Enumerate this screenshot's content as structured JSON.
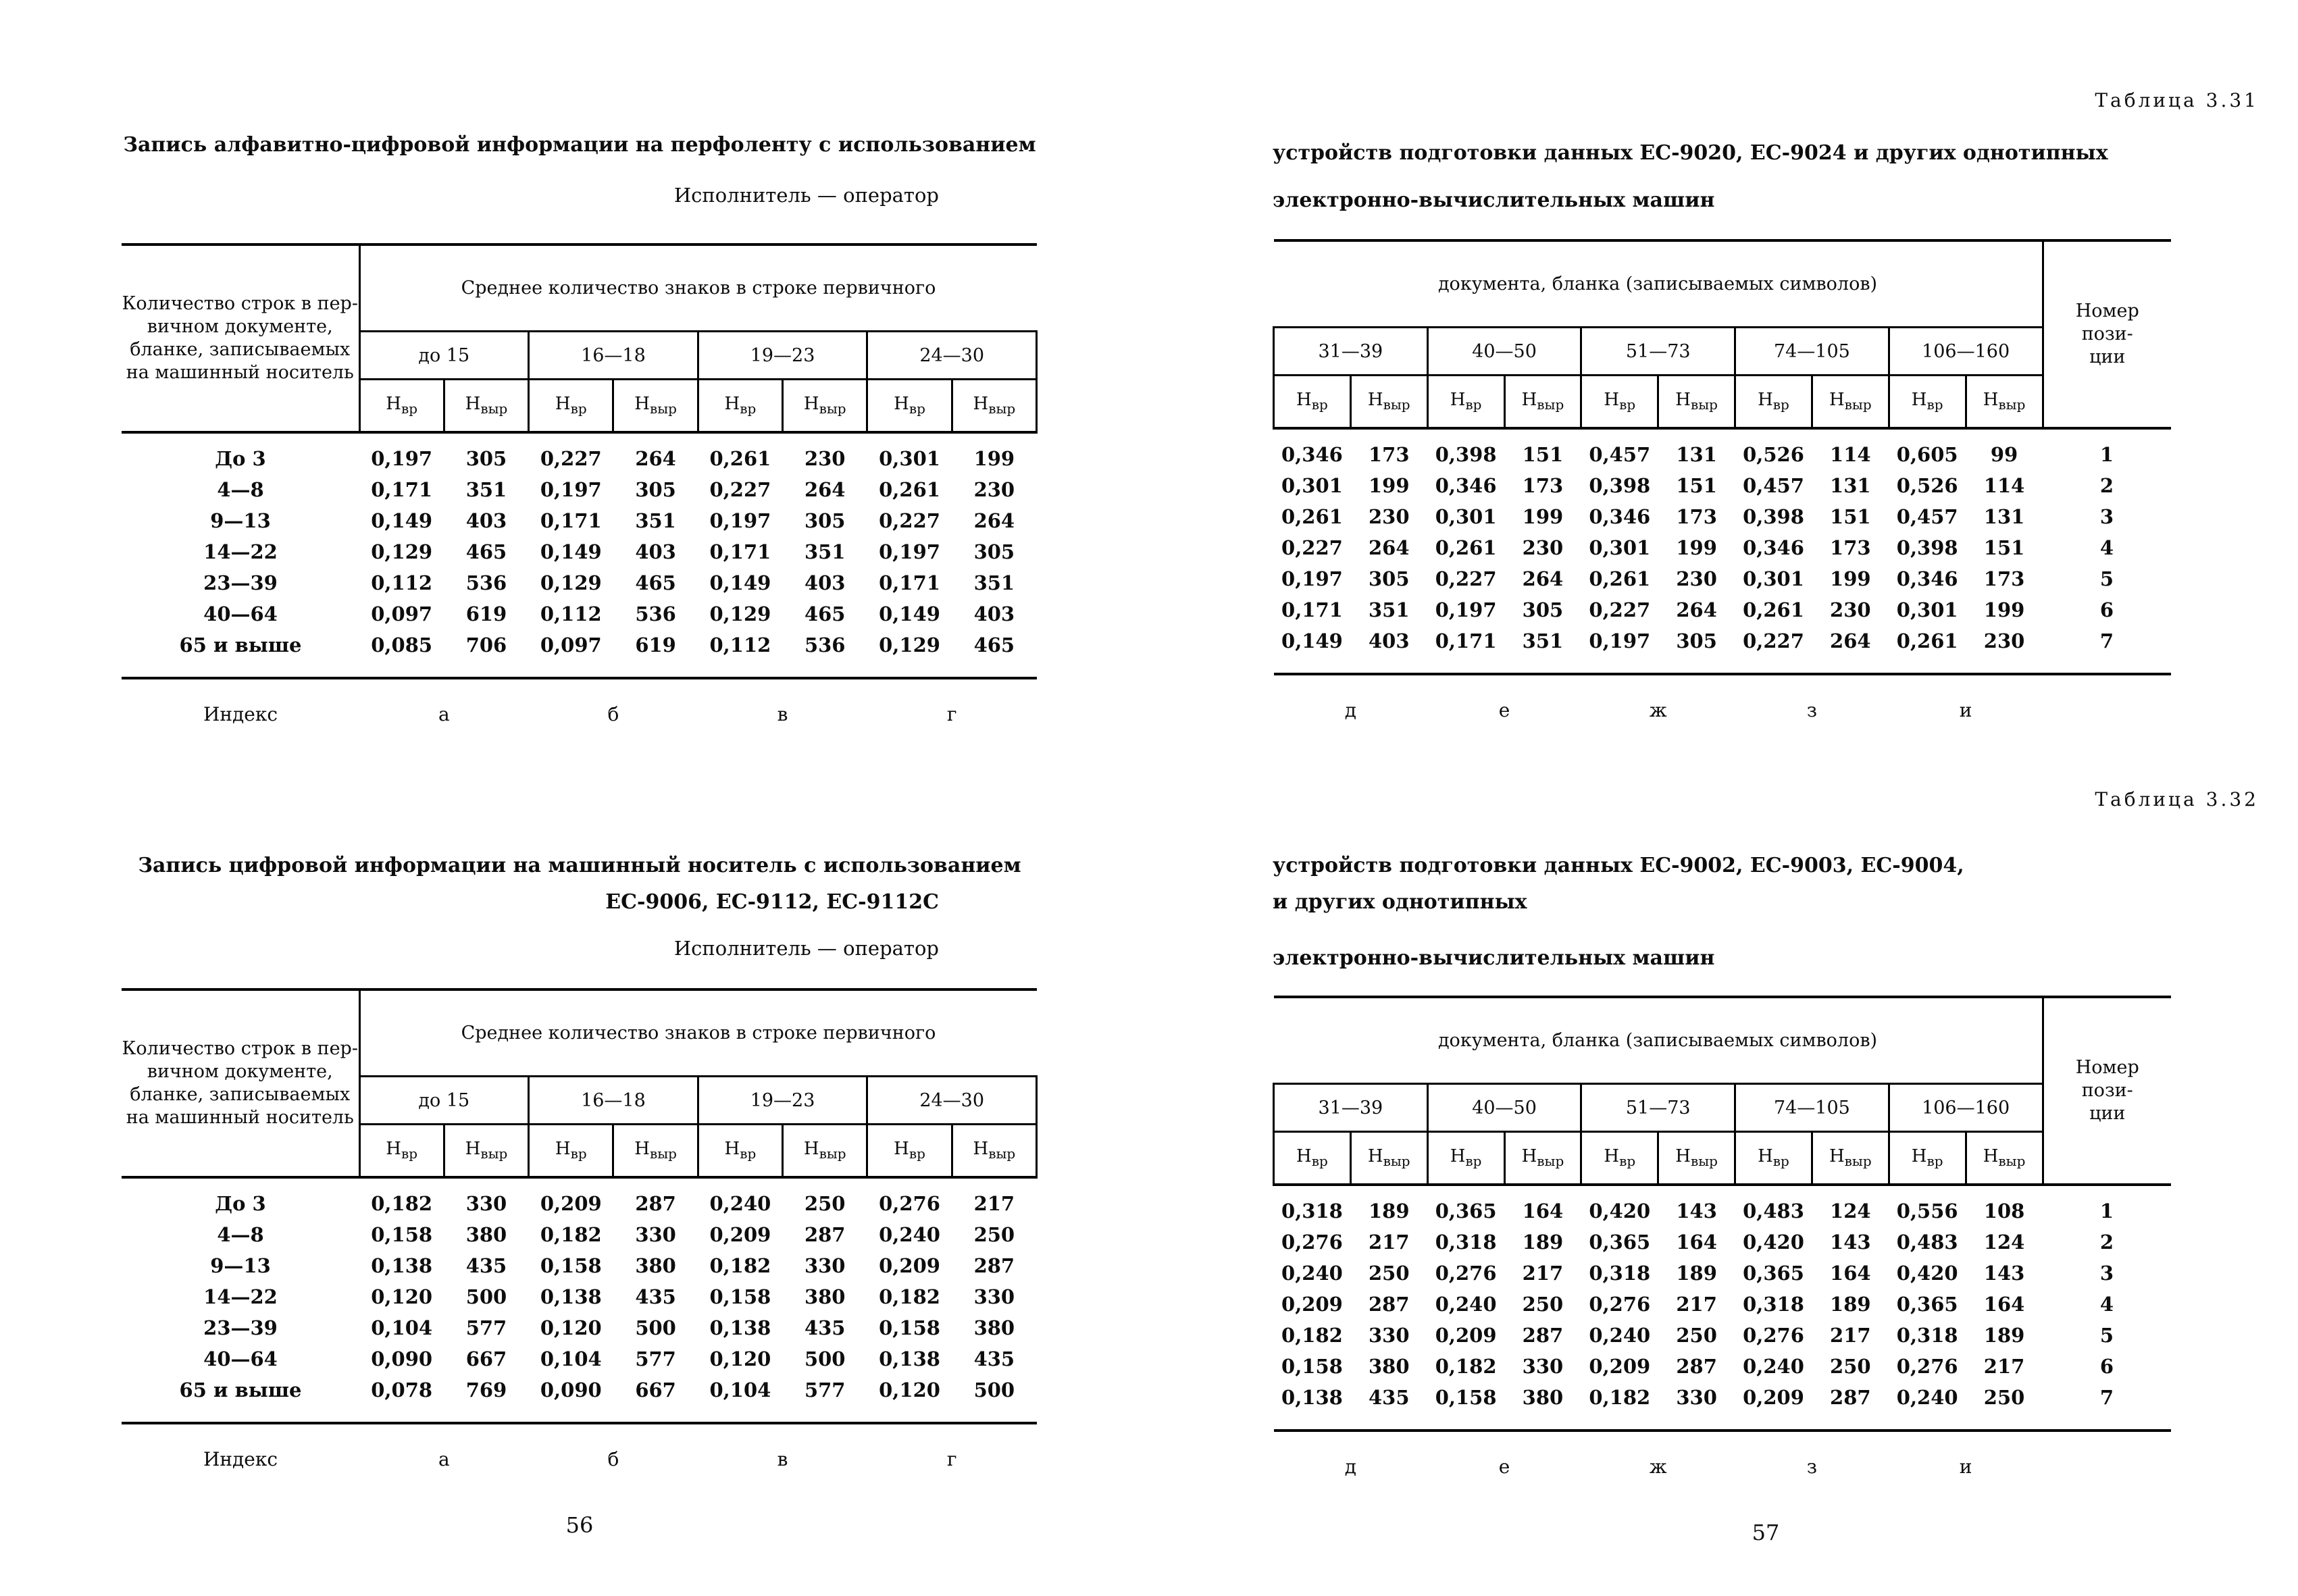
{
  "units": {
    "base": "Н",
    "vr": "вр",
    "vyr": "выр"
  },
  "left_page": {
    "page_number": "56",
    "table_331": {
      "title": "Запись алфавитно-цифровой информации на перфоленту с использованием",
      "performer": "Исполнитель — оператор",
      "col1_header": "Количество строк в пер-\nвичном документе,\nбланке, записываемых\nна машинный носитель",
      "group_header": "Среднее количество знаков в строке первичного",
      "groups": [
        "до 15",
        "16—18",
        "19—23",
        "24—30"
      ],
      "rows": [
        {
          "label": "До 3",
          "values": [
            "0,197",
            "305",
            "0,227",
            "264",
            "0,261",
            "230",
            "0,301",
            "199"
          ]
        },
        {
          "label": "4—8",
          "values": [
            "0,171",
            "351",
            "0,197",
            "305",
            "0,227",
            "264",
            "0,261",
            "230"
          ]
        },
        {
          "label": "9—13",
          "values": [
            "0,149",
            "403",
            "0,171",
            "351",
            "0,197",
            "305",
            "0,227",
            "264"
          ]
        },
        {
          "label": "14—22",
          "values": [
            "0,129",
            "465",
            "0,149",
            "403",
            "0,171",
            "351",
            "0,197",
            "305"
          ]
        },
        {
          "label": "23—39",
          "values": [
            "0,112",
            "536",
            "0,129",
            "465",
            "0,149",
            "403",
            "0,171",
            "351"
          ]
        },
        {
          "label": "40—64",
          "values": [
            "0,097",
            "619",
            "0,112",
            "536",
            "0,129",
            "465",
            "0,149",
            "403"
          ]
        },
        {
          "label": "65 и выше",
          "values": [
            "0,085",
            "706",
            "0,097",
            "619",
            "0,112",
            "536",
            "0,129",
            "465"
          ]
        }
      ],
      "index_label": "Индекс",
      "index_letters": [
        "а",
        "б",
        "в",
        "г"
      ]
    },
    "table_332": {
      "title_line1": "Запись цифровой информации на машинный носитель с использованием",
      "title_line2": "ЕС-9006, ЕС-9112, ЕС-9112С",
      "performer": "Исполнитель — оператор",
      "col1_header": "Количество строк в пер-\nвичном документе,\nбланке, записываемых\nна машинный носитель",
      "group_header": "Среднее количество знаков в строке первичного",
      "groups": [
        "до 15",
        "16—18",
        "19—23",
        "24—30"
      ],
      "rows": [
        {
          "label": "До 3",
          "values": [
            "0,182",
            "330",
            "0,209",
            "287",
            "0,240",
            "250",
            "0,276",
            "217"
          ]
        },
        {
          "label": "4—8",
          "values": [
            "0,158",
            "380",
            "0,182",
            "330",
            "0,209",
            "287",
            "0,240",
            "250"
          ]
        },
        {
          "label": "9—13",
          "values": [
            "0,138",
            "435",
            "0,158",
            "380",
            "0,182",
            "330",
            "0,209",
            "287"
          ]
        },
        {
          "label": "14—22",
          "values": [
            "0,120",
            "500",
            "0,138",
            "435",
            "0,158",
            "380",
            "0,182",
            "330"
          ]
        },
        {
          "label": "23—39",
          "values": [
            "0,104",
            "577",
            "0,120",
            "500",
            "0,138",
            "435",
            "0,158",
            "380"
          ]
        },
        {
          "label": "40—64",
          "values": [
            "0,090",
            "667",
            "0,104",
            "577",
            "0,120",
            "500",
            "0,138",
            "435"
          ]
        },
        {
          "label": "65 и выше",
          "values": [
            "0,078",
            "769",
            "0,090",
            "667",
            "0,104",
            "577",
            "0,120",
            "500"
          ]
        }
      ],
      "index_label": "Индекс",
      "index_letters": [
        "а",
        "б",
        "в",
        "г"
      ]
    }
  },
  "right_page": {
    "page_number": "57",
    "table_331": {
      "label": "Таблица 3.31",
      "title_line1": "устройств подготовки данных ЕС-9020, ЕС-9024 и других однотипных",
      "title_line2": "электронно-вычислительных машин",
      "group_header": "документа, бланка (записываемых символов)",
      "position_header": "Номер\nпози-\nции",
      "groups": [
        "31—39",
        "40—50",
        "51—73",
        "74—105",
        "106—160"
      ],
      "rows": [
        {
          "values": [
            "0,346",
            "173",
            "0,398",
            "151",
            "0,457",
            "131",
            "0,526",
            "114",
            "0,605",
            "99"
          ],
          "position": "1"
        },
        {
          "values": [
            "0,301",
            "199",
            "0,346",
            "173",
            "0,398",
            "151",
            "0,457",
            "131",
            "0,526",
            "114"
          ],
          "position": "2"
        },
        {
          "values": [
            "0,261",
            "230",
            "0,301",
            "199",
            "0,346",
            "173",
            "0,398",
            "151",
            "0,457",
            "131"
          ],
          "position": "3"
        },
        {
          "values": [
            "0,227",
            "264",
            "0,261",
            "230",
            "0,301",
            "199",
            "0,346",
            "173",
            "0,398",
            "151"
          ],
          "position": "4"
        },
        {
          "values": [
            "0,197",
            "305",
            "0,227",
            "264",
            "0,261",
            "230",
            "0,301",
            "199",
            "0,346",
            "173"
          ],
          "position": "5"
        },
        {
          "values": [
            "0,171",
            "351",
            "0,197",
            "305",
            "0,227",
            "264",
            "0,261",
            "230",
            "0,301",
            "199"
          ],
          "position": "6"
        },
        {
          "values": [
            "0,149",
            "403",
            "0,171",
            "351",
            "0,197",
            "305",
            "0,227",
            "264",
            "0,261",
            "230"
          ],
          "position": "7"
        }
      ],
      "index_letters": [
        "д",
        "е",
        "ж",
        "з",
        "и"
      ]
    },
    "table_332": {
      "label": "Таблица 3.32",
      "title_line1": "устройств подготовки данных ЕС-9002, ЕС-9003, ЕС-9004,",
      "title_line2": "и других однотипных",
      "title_line3": "электронно-вычислительных машин",
      "group_header": "документа, бланка (записываемых символов)",
      "position_header": "Номер\nпози-\nции",
      "groups": [
        "31—39",
        "40—50",
        "51—73",
        "74—105",
        "106—160"
      ],
      "rows": [
        {
          "values": [
            "0,318",
            "189",
            "0,365",
            "164",
            "0,420",
            "143",
            "0,483",
            "124",
            "0,556",
            "108"
          ],
          "position": "1"
        },
        {
          "values": [
            "0,276",
            "217",
            "0,318",
            "189",
            "0,365",
            "164",
            "0,420",
            "143",
            "0,483",
            "124"
          ],
          "position": "2"
        },
        {
          "values": [
            "0,240",
            "250",
            "0,276",
            "217",
            "0,318",
            "189",
            "0,365",
            "164",
            "0,420",
            "143"
          ],
          "position": "3"
        },
        {
          "values": [
            "0,209",
            "287",
            "0,240",
            "250",
            "0,276",
            "217",
            "0,318",
            "189",
            "0,365",
            "164"
          ],
          "position": "4"
        },
        {
          "values": [
            "0,182",
            "330",
            "0,209",
            "287",
            "0,240",
            "250",
            "0,276",
            "217",
            "0,318",
            "189"
          ],
          "position": "5"
        },
        {
          "values": [
            "0,158",
            "380",
            "0,182",
            "330",
            "0,209",
            "287",
            "0,240",
            "250",
            "0,276",
            "217"
          ],
          "position": "6"
        },
        {
          "values": [
            "0,138",
            "435",
            "0,158",
            "380",
            "0,182",
            "330",
            "0,209",
            "287",
            "0,240",
            "250"
          ],
          "position": "7"
        }
      ],
      "index_letters": [
        "д",
        "е",
        "ж",
        "з",
        "и"
      ]
    }
  }
}
